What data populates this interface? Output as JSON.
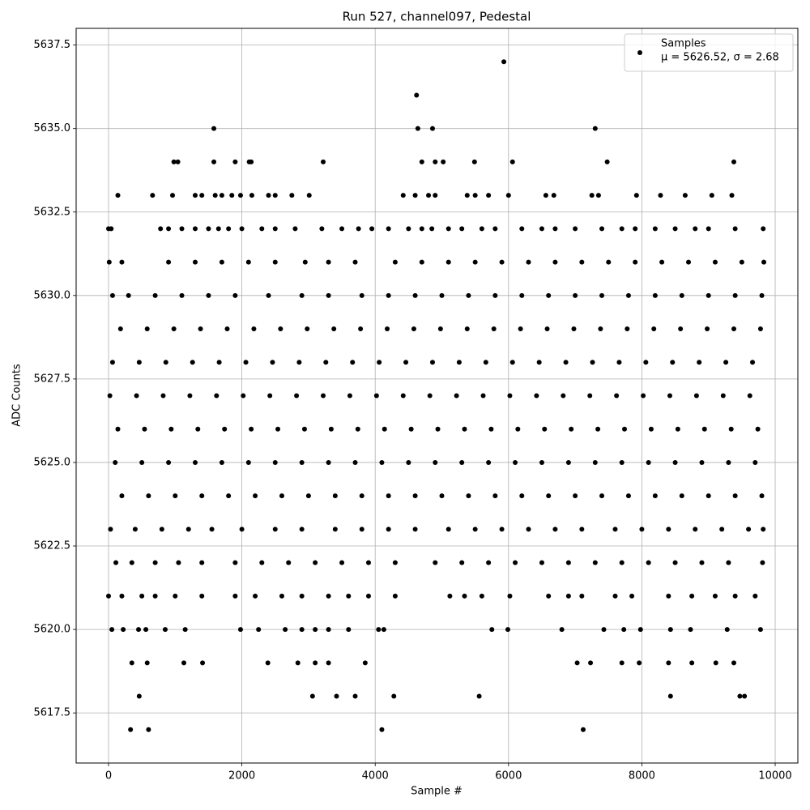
{
  "chart_data": {
    "type": "scatter",
    "title": "Run 527, channel097, Pedestal",
    "x_label": "Sample #",
    "y_label": "ADC Counts",
    "xlim": [
      -486,
      10340
    ],
    "ylim": [
      5616.0,
      5638.0
    ],
    "xticks": [
      0,
      2000,
      4000,
      6000,
      8000,
      10000
    ],
    "yticks": [
      {
        "value": 5617.5,
        "label": "5617.5"
      },
      {
        "value": 5620,
        "label": "5620.0"
      },
      {
        "value": 5622.5,
        "label": "5622.5"
      },
      {
        "value": 5625,
        "label": "5625.0"
      },
      {
        "value": 5627.5,
        "label": "5627.5"
      },
      {
        "value": 5630,
        "label": "5630.0"
      },
      {
        "value": 5632.5,
        "label": "5632.5"
      },
      {
        "value": 5635,
        "label": "5635.0"
      },
      {
        "value": 5637.5,
        "label": "5637.5"
      }
    ],
    "grid": true,
    "legend_position": "upper right",
    "legend_stats": "μ = 5626.52, σ = 2.68",
    "x": [
      180,
      580,
      980,
      1380,
      1780,
      2180,
      2580,
      2980,
      3380,
      3780,
      4180,
      4580,
      4980,
      5380,
      5780,
      6180,
      6580,
      6980,
      7380,
      7780,
      8180,
      8580,
      8980,
      9380,
      9780,
      60,
      460,
      860,
      1260,
      1660,
      2060,
      2460,
      2860,
      3260,
      3660,
      4060,
      4460,
      4860,
      5260,
      5660,
      6060,
      6460,
      6860,
      7260,
      7660,
      8060,
      8460,
      8860,
      9260,
      9660,
      20,
      420,
      820,
      1220,
      1620,
      2020,
      2420,
      2820,
      3220,
      3620,
      4020,
      4420,
      4820,
      5220,
      5620,
      6020,
      6420,
      6820,
      7220,
      7620,
      8020,
      8420,
      8820,
      9220,
      9620,
      140,
      540,
      940,
      1340,
      1740,
      2140,
      2540,
      2940,
      3340,
      3740,
      4140,
      4540,
      4940,
      5340,
      5740,
      6140,
      6540,
      6940,
      7340,
      7740,
      8140,
      8540,
      8940,
      9340,
      9740,
      100,
      500,
      900,
      1300,
      1700,
      2100,
      2500,
      2900,
      3300,
      3700,
      4100,
      4500,
      4900,
      5300,
      5700,
      6100,
      6500,
      6900,
      7300,
      7700,
      8100,
      8500,
      8900,
      9300,
      9700,
      200,
      600,
      1000,
      1400,
      1800,
      2200,
      2600,
      3000,
      3400,
      3800,
      4200,
      4600,
      5000,
      5400,
      5800,
      6200,
      6600,
      7000,
      7400,
      7800,
      8200,
      8600,
      9000,
      9400,
      9800,
      60,
      300,
      700,
      1100,
      1500,
      1900,
      2400,
      2900,
      3300,
      3800,
      4200,
      4600,
      5000,
      5400,
      5800,
      6200,
      6600,
      7000,
      7400,
      7800,
      8200,
      8600,
      9000,
      9400,
      9800,
      10,
      200,
      900,
      1300,
      1700,
      2100,
      2500,
      2950,
      3300,
      3700,
      4300,
      4700,
      5100,
      5500,
      5900,
      6300,
      6700,
      7100,
      7500,
      7900,
      8300,
      8700,
      9100,
      9500,
      9830,
      0,
      40,
      780,
      900,
      1100,
      1300,
      1500,
      1650,
      1800,
      2000,
      2300,
      2500,
      2800,
      3200,
      3500,
      3750,
      3950,
      4200,
      4500,
      4700,
      4850,
      5100,
      5300,
      5600,
      5800,
      6200,
      6500,
      6700,
      7000,
      7400,
      7700,
      7900,
      8200,
      8500,
      8800,
      9000,
      9400,
      9820,
      140,
      660,
      960,
      1300,
      1400,
      1600,
      1700,
      1850,
      1980,
      2150,
      2400,
      2500,
      2750,
      3010,
      4420,
      4600,
      4800,
      4900,
      5380,
      5500,
      5700,
      6000,
      6560,
      6680,
      7250,
      7350,
      7920,
      8280,
      8650,
      9050,
      9350,
      980,
      1040,
      1580,
      1900,
      2110,
      2140,
      3220,
      4700,
      4900,
      5020,
      5490,
      6060,
      7480,
      9380,
      1580,
      4640,
      4860,
      7300,
      4620,
      5930,
      30,
      400,
      800,
      1200,
      1550,
      2000,
      2500,
      2900,
      3400,
      3800,
      4200,
      4600,
      5100,
      5500,
      5900,
      6300,
      6700,
      7100,
      7600,
      8000,
      8400,
      8800,
      9200,
      9600,
      9820,
      110,
      350,
      700,
      1050,
      1400,
      1900,
      2300,
      2700,
      3100,
      3500,
      3900,
      4300,
      4900,
      5300,
      5700,
      6100,
      6500,
      6900,
      7300,
      7700,
      8100,
      8500,
      8900,
      9300,
      9810,
      0,
      200,
      500,
      700,
      1000,
      1400,
      1900,
      2200,
      2600,
      2900,
      3300,
      3600,
      3900,
      4300,
      5120,
      5340,
      5600,
      6020,
      6600,
      6900,
      7100,
      7600,
      7850,
      8400,
      8750,
      9100,
      9400,
      9700,
      50,
      220,
      450,
      560,
      850,
      1150,
      1980,
      2250,
      2650,
      2900,
      3100,
      3300,
      3600,
      4050,
      4130,
      5750,
      5990,
      6800,
      7430,
      7730,
      7980,
      8430,
      8730,
      9280,
      9780,
      350,
      580,
      1130,
      1410,
      2390,
      2840,
      3100,
      3300,
      3850,
      7030,
      7230,
      7700,
      7960,
      8400,
      8750,
      9110,
      9380,
      460,
      3060,
      3420,
      3700,
      4280,
      5560,
      8430,
      9470,
      9540,
      330,
      600,
      4100,
      7120
    ],
    "series": [
      {
        "name": "Samples",
        "color": "#000000",
        "values": [
          5629,
          5629,
          5629,
          5629,
          5629,
          5629,
          5629,
          5629,
          5629,
          5629,
          5629,
          5629,
          5629,
          5629,
          5629,
          5629,
          5629,
          5629,
          5629,
          5629,
          5629,
          5629,
          5629,
          5629,
          5629,
          5628,
          5628,
          5628,
          5628,
          5628,
          5628,
          5628,
          5628,
          5628,
          5628,
          5628,
          5628,
          5628,
          5628,
          5628,
          5628,
          5628,
          5628,
          5628,
          5628,
          5628,
          5628,
          5628,
          5628,
          5628,
          5627,
          5627,
          5627,
          5627,
          5627,
          5627,
          5627,
          5627,
          5627,
          5627,
          5627,
          5627,
          5627,
          5627,
          5627,
          5627,
          5627,
          5627,
          5627,
          5627,
          5627,
          5627,
          5627,
          5627,
          5627,
          5626,
          5626,
          5626,
          5626,
          5626,
          5626,
          5626,
          5626,
          5626,
          5626,
          5626,
          5626,
          5626,
          5626,
          5626,
          5626,
          5626,
          5626,
          5626,
          5626,
          5626,
          5626,
          5626,
          5626,
          5626,
          5625,
          5625,
          5625,
          5625,
          5625,
          5625,
          5625,
          5625,
          5625,
          5625,
          5625,
          5625,
          5625,
          5625,
          5625,
          5625,
          5625,
          5625,
          5625,
          5625,
          5625,
          5625,
          5625,
          5625,
          5625,
          5624,
          5624,
          5624,
          5624,
          5624,
          5624,
          5624,
          5624,
          5624,
          5624,
          5624,
          5624,
          5624,
          5624,
          5624,
          5624,
          5624,
          5624,
          5624,
          5624,
          5624,
          5624,
          5624,
          5624,
          5624,
          5630,
          5630,
          5630,
          5630,
          5630,
          5630,
          5630,
          5630,
          5630,
          5630,
          5630,
          5630,
          5630,
          5630,
          5630,
          5630,
          5630,
          5630,
          5630,
          5630,
          5630,
          5630,
          5630,
          5630,
          5630,
          5631,
          5631,
          5631,
          5631,
          5631,
          5631,
          5631,
          5631,
          5631,
          5631,
          5631,
          5631,
          5631,
          5631,
          5631,
          5631,
          5631,
          5631,
          5631,
          5631,
          5631,
          5631,
          5631,
          5631,
          5631,
          5632,
          5632,
          5632,
          5632,
          5632,
          5632,
          5632,
          5632,
          5632,
          5632,
          5632,
          5632,
          5632,
          5632,
          5632,
          5632,
          5632,
          5632,
          5632,
          5632,
          5632,
          5632,
          5632,
          5632,
          5632,
          5632,
          5632,
          5632,
          5632,
          5632,
          5632,
          5632,
          5632,
          5632,
          5632,
          5632,
          5632,
          5632,
          5633,
          5633,
          5633,
          5633,
          5633,
          5633,
          5633,
          5633,
          5633,
          5633,
          5633,
          5633,
          5633,
          5633,
          5633,
          5633,
          5633,
          5633,
          5633,
          5633,
          5633,
          5633,
          5633,
          5633,
          5633,
          5633,
          5633,
          5633,
          5633,
          5633,
          5633,
          5634,
          5634,
          5634,
          5634,
          5634,
          5634,
          5634,
          5634,
          5634,
          5634,
          5634,
          5634,
          5634,
          5634,
          5635,
          5635,
          5635,
          5635,
          5636,
          5637,
          5623,
          5623,
          5623,
          5623,
          5623,
          5623,
          5623,
          5623,
          5623,
          5623,
          5623,
          5623,
          5623,
          5623,
          5623,
          5623,
          5623,
          5623,
          5623,
          5623,
          5623,
          5623,
          5623,
          5623,
          5623,
          5622,
          5622,
          5622,
          5622,
          5622,
          5622,
          5622,
          5622,
          5622,
          5622,
          5622,
          5622,
          5622,
          5622,
          5622,
          5622,
          5622,
          5622,
          5622,
          5622,
          5622,
          5622,
          5622,
          5622,
          5622,
          5621,
          5621,
          5621,
          5621,
          5621,
          5621,
          5621,
          5621,
          5621,
          5621,
          5621,
          5621,
          5621,
          5621,
          5621,
          5621,
          5621,
          5621,
          5621,
          5621,
          5621,
          5621,
          5621,
          5621,
          5621,
          5621,
          5621,
          5621,
          5620,
          5620,
          5620,
          5620,
          5620,
          5620,
          5620,
          5620,
          5620,
          5620,
          5620,
          5620,
          5620,
          5620,
          5620,
          5620,
          5620,
          5620,
          5620,
          5620,
          5620,
          5620,
          5620,
          5620,
          5620,
          5619,
          5619,
          5619,
          5619,
          5619,
          5619,
          5619,
          5619,
          5619,
          5619,
          5619,
          5619,
          5619,
          5619,
          5619,
          5619,
          5619,
          5618,
          5618,
          5618,
          5618,
          5618,
          5618,
          5618,
          5618,
          5618,
          5617,
          5617,
          5617,
          5617
        ]
      }
    ]
  }
}
